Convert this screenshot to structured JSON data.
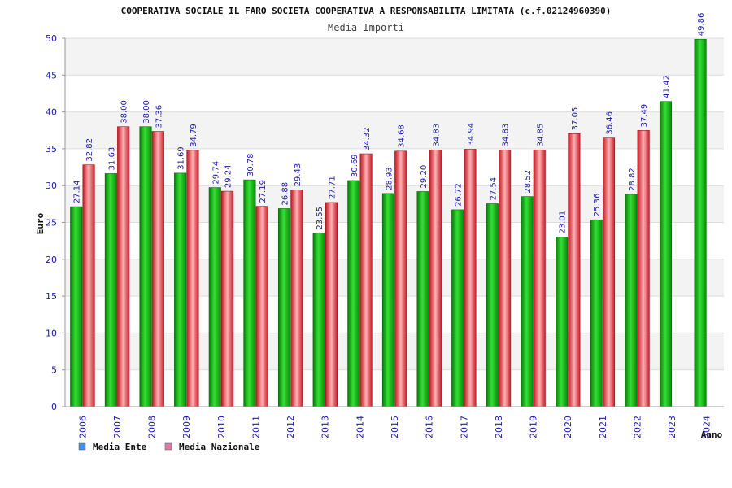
{
  "chart_data": {
    "type": "bar",
    "title": "COOPERATIVA SOCIALE IL FARO SOCIETA COOPERATIVA A RESPONSABILITA LIMITATA (c.f.02124960390)",
    "subtitle": "Media Importi",
    "ylabel": "Euro",
    "xlabel": "Anno",
    "ylim": [
      0,
      50
    ],
    "yticks": [
      0,
      5,
      10,
      15,
      20,
      25,
      30,
      35,
      40,
      45,
      50
    ],
    "grid": true,
    "legend_position": "bottom-left",
    "categories": [
      "2006",
      "2007",
      "2008",
      "2009",
      "2010",
      "2011",
      "2012",
      "2013",
      "2014",
      "2015",
      "2016",
      "2017",
      "2018",
      "2019",
      "2020",
      "2021",
      "2022",
      "2023",
      "2024"
    ],
    "series": [
      {
        "name": "Media Ente",
        "color": "#1aa21a",
        "legend_color": "#4a90e2",
        "values": [
          27.14,
          31.63,
          38.0,
          31.69,
          29.74,
          30.78,
          26.88,
          23.55,
          30.69,
          28.93,
          29.2,
          26.72,
          27.54,
          28.52,
          23.01,
          25.36,
          28.82,
          41.42,
          49.86
        ],
        "labels": [
          "27.14",
          "31.63",
          "38.00",
          "31.69",
          "29.74",
          "30.78",
          "26.88",
          "23.55",
          "30.69",
          "28.93",
          "29.20",
          "26.72",
          "27.54",
          "28.52",
          "23.01",
          "25.36",
          "28.82",
          "41.42",
          "49.86"
        ]
      },
      {
        "name": "Media Nazionale",
        "color": "#e0303a",
        "legend_color": "#e07aa8",
        "values": [
          32.82,
          38.0,
          37.36,
          34.79,
          29.24,
          27.19,
          29.43,
          27.71,
          34.32,
          34.68,
          34.83,
          34.94,
          34.83,
          34.85,
          37.05,
          36.46,
          37.49,
          null,
          null
        ],
        "labels": [
          "32.82",
          "38.00",
          "37.36",
          "34.79",
          "29.24",
          "27.19",
          "29.43",
          "27.71",
          "34.32",
          "34.68",
          "34.83",
          "34.94",
          "34.83",
          "34.85",
          "37.05",
          "36.46",
          "37.49",
          "",
          ""
        ]
      }
    ]
  }
}
